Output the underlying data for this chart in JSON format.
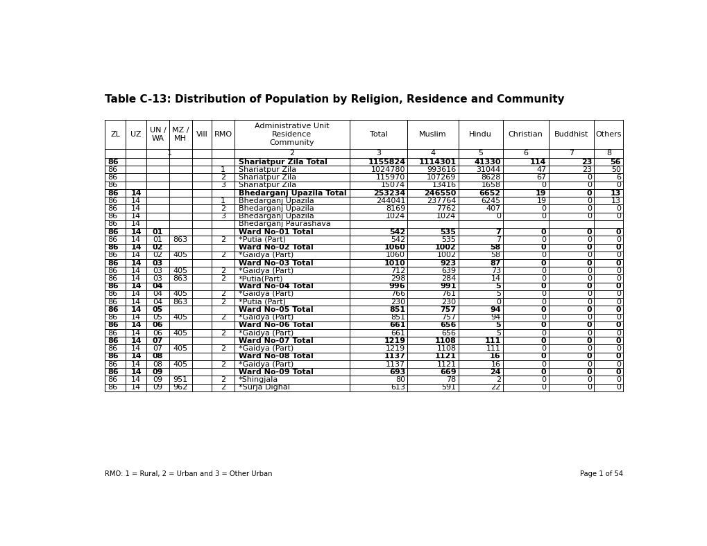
{
  "title": "Table C-13: Distribution of Population by Religion, Residence and Community",
  "rows": [
    {
      "zl": "86",
      "uz": "",
      "un": "",
      "mz": "",
      "rmo": "",
      "name": "Shariatpur Zila Total",
      "total": "1155824",
      "muslim": "1114301",
      "hindu": "41330",
      "christian": "114",
      "buddhist": "23",
      "others": "56",
      "bold": true
    },
    {
      "zl": "86",
      "uz": "",
      "un": "",
      "mz": "",
      "rmo": "1",
      "name": "Shariatpur Zila",
      "total": "1024780",
      "muslim": "993616",
      "hindu": "31044",
      "christian": "47",
      "buddhist": "23",
      "others": "50",
      "bold": false
    },
    {
      "zl": "86",
      "uz": "",
      "un": "",
      "mz": "",
      "rmo": "2",
      "name": "Shariatpur Zila",
      "total": "115970",
      "muslim": "107269",
      "hindu": "8628",
      "christian": "67",
      "buddhist": "0",
      "others": "6",
      "bold": false
    },
    {
      "zl": "86",
      "uz": "",
      "un": "",
      "mz": "",
      "rmo": "3",
      "name": "Shariatpur Zila",
      "total": "15074",
      "muslim": "13416",
      "hindu": "1658",
      "christian": "0",
      "buddhist": "0",
      "others": "0",
      "bold": false
    },
    {
      "zl": "86",
      "uz": "14",
      "un": "",
      "mz": "",
      "rmo": "",
      "name": "Bhedarganj Upazila Total",
      "total": "253234",
      "muslim": "246550",
      "hindu": "6652",
      "christian": "19",
      "buddhist": "0",
      "others": "13",
      "bold": true
    },
    {
      "zl": "86",
      "uz": "14",
      "un": "",
      "mz": "",
      "rmo": "1",
      "name": "Bhedarganj Upazila",
      "total": "244041",
      "muslim": "237764",
      "hindu": "6245",
      "christian": "19",
      "buddhist": "0",
      "others": "13",
      "bold": false
    },
    {
      "zl": "86",
      "uz": "14",
      "un": "",
      "mz": "",
      "rmo": "2",
      "name": "Bhedarganj Upazila",
      "total": "8169",
      "muslim": "7762",
      "hindu": "407",
      "christian": "0",
      "buddhist": "0",
      "others": "0",
      "bold": false
    },
    {
      "zl": "86",
      "uz": "14",
      "un": "",
      "mz": "",
      "rmo": "3",
      "name": "Bhedarganj Upazila",
      "total": "1024",
      "muslim": "1024",
      "hindu": "0",
      "christian": "0",
      "buddhist": "0",
      "others": "0",
      "bold": false
    },
    {
      "zl": "86",
      "uz": "14",
      "un": "",
      "mz": "",
      "rmo": "",
      "name": "Bhedarganj Paurashava",
      "total": "",
      "muslim": "",
      "hindu": "",
      "christian": "",
      "buddhist": "",
      "others": "",
      "bold": false
    },
    {
      "zl": "86",
      "uz": "14",
      "un": "01",
      "mz": "",
      "rmo": "",
      "name": "Ward No-01 Total",
      "total": "542",
      "muslim": "535",
      "hindu": "7",
      "christian": "0",
      "buddhist": "0",
      "others": "0",
      "bold": true
    },
    {
      "zl": "86",
      "uz": "14",
      "un": "01",
      "mz": "863",
      "rmo": "2",
      "name": "*Putia (Part)",
      "total": "542",
      "muslim": "535",
      "hindu": "7",
      "christian": "0",
      "buddhist": "0",
      "others": "0",
      "bold": false
    },
    {
      "zl": "86",
      "uz": "14",
      "un": "02",
      "mz": "",
      "rmo": "",
      "name": "Ward No-02 Total",
      "total": "1060",
      "muslim": "1002",
      "hindu": "58",
      "christian": "0",
      "buddhist": "0",
      "others": "0",
      "bold": true
    },
    {
      "zl": "86",
      "uz": "14",
      "un": "02",
      "mz": "405",
      "rmo": "2",
      "name": "*Gaidya (Part)",
      "total": "1060",
      "muslim": "1002",
      "hindu": "58",
      "christian": "0",
      "buddhist": "0",
      "others": "0",
      "bold": false
    },
    {
      "zl": "86",
      "uz": "14",
      "un": "03",
      "mz": "",
      "rmo": "",
      "name": "Ward No-03 Total",
      "total": "1010",
      "muslim": "923",
      "hindu": "87",
      "christian": "0",
      "buddhist": "0",
      "others": "0",
      "bold": true
    },
    {
      "zl": "86",
      "uz": "14",
      "un": "03",
      "mz": "405",
      "rmo": "2",
      "name": "*Gaidya (Part)",
      "total": "712",
      "muslim": "639",
      "hindu": "73",
      "christian": "0",
      "buddhist": "0",
      "others": "0",
      "bold": false
    },
    {
      "zl": "86",
      "uz": "14",
      "un": "03",
      "mz": "863",
      "rmo": "2",
      "name": "*Putia(Part)",
      "total": "298",
      "muslim": "284",
      "hindu": "14",
      "christian": "0",
      "buddhist": "0",
      "others": "0",
      "bold": false
    },
    {
      "zl": "86",
      "uz": "14",
      "un": "04",
      "mz": "",
      "rmo": "",
      "name": "Ward No-04 Total",
      "total": "996",
      "muslim": "991",
      "hindu": "5",
      "christian": "0",
      "buddhist": "0",
      "others": "0",
      "bold": true
    },
    {
      "zl": "86",
      "uz": "14",
      "un": "04",
      "mz": "405",
      "rmo": "2",
      "name": "*Gaidya (Part)",
      "total": "766",
      "muslim": "761",
      "hindu": "5",
      "christian": "0",
      "buddhist": "0",
      "others": "0",
      "bold": false
    },
    {
      "zl": "86",
      "uz": "14",
      "un": "04",
      "mz": "863",
      "rmo": "2",
      "name": "*Putia (Part)",
      "total": "230",
      "muslim": "230",
      "hindu": "0",
      "christian": "0",
      "buddhist": "0",
      "others": "0",
      "bold": false
    },
    {
      "zl": "86",
      "uz": "14",
      "un": "05",
      "mz": "",
      "rmo": "",
      "name": "Ward No-05 Total",
      "total": "851",
      "muslim": "757",
      "hindu": "94",
      "christian": "0",
      "buddhist": "0",
      "others": "0",
      "bold": true
    },
    {
      "zl": "86",
      "uz": "14",
      "un": "05",
      "mz": "405",
      "rmo": "2",
      "name": "*Gaidya (Part)",
      "total": "851",
      "muslim": "757",
      "hindu": "94",
      "christian": "0",
      "buddhist": "0",
      "others": "0",
      "bold": false
    },
    {
      "zl": "86",
      "uz": "14",
      "un": "06",
      "mz": "",
      "rmo": "",
      "name": "Ward No-06 Total",
      "total": "661",
      "muslim": "656",
      "hindu": "5",
      "christian": "0",
      "buddhist": "0",
      "others": "0",
      "bold": true
    },
    {
      "zl": "86",
      "uz": "14",
      "un": "06",
      "mz": "405",
      "rmo": "2",
      "name": "*Gaidya (Part)",
      "total": "661",
      "muslim": "656",
      "hindu": "5",
      "christian": "0",
      "buddhist": "0",
      "others": "0",
      "bold": false
    },
    {
      "zl": "86",
      "uz": "14",
      "un": "07",
      "mz": "",
      "rmo": "",
      "name": "Ward No-07 Total",
      "total": "1219",
      "muslim": "1108",
      "hindu": "111",
      "christian": "0",
      "buddhist": "0",
      "others": "0",
      "bold": true
    },
    {
      "zl": "86",
      "uz": "14",
      "un": "07",
      "mz": "405",
      "rmo": "2",
      "name": "*Gaidya (Part)",
      "total": "1219",
      "muslim": "1108",
      "hindu": "111",
      "christian": "0",
      "buddhist": "0",
      "others": "0",
      "bold": false
    },
    {
      "zl": "86",
      "uz": "14",
      "un": "08",
      "mz": "",
      "rmo": "",
      "name": "Ward No-08 Total",
      "total": "1137",
      "muslim": "1121",
      "hindu": "16",
      "christian": "0",
      "buddhist": "0",
      "others": "0",
      "bold": true
    },
    {
      "zl": "86",
      "uz": "14",
      "un": "08",
      "mz": "405",
      "rmo": "2",
      "name": "*Gaidya (Part)",
      "total": "1137",
      "muslim": "1121",
      "hindu": "16",
      "christian": "0",
      "buddhist": "0",
      "others": "0",
      "bold": false
    },
    {
      "zl": "86",
      "uz": "14",
      "un": "09",
      "mz": "",
      "rmo": "",
      "name": "Ward No-09 Total",
      "total": "693",
      "muslim": "669",
      "hindu": "24",
      "christian": "0",
      "buddhist": "0",
      "others": "0",
      "bold": true
    },
    {
      "zl": "86",
      "uz": "14",
      "un": "09",
      "mz": "951",
      "rmo": "2",
      "name": "*Shingjala",
      "total": "80",
      "muslim": "78",
      "hindu": "2",
      "christian": "0",
      "buddhist": "0",
      "others": "0",
      "bold": false
    },
    {
      "zl": "86",
      "uz": "14",
      "un": "09",
      "mz": "962",
      "rmo": "2",
      "name": "*Surja Dighal",
      "total": "613",
      "muslim": "591",
      "hindu": "22",
      "christian": "0",
      "buddhist": "0",
      "others": "0",
      "bold": false
    }
  ],
  "footer_note": "RMO: 1 = Rural, 2 = Urban and 3 = Other Urban",
  "page_note": "Page 1 of 54",
  "background_color": "#ffffff",
  "text_color": "#000000",
  "title_fontsize": 11,
  "table_fontsize": 8.0,
  "header_fontsize": 8.0
}
